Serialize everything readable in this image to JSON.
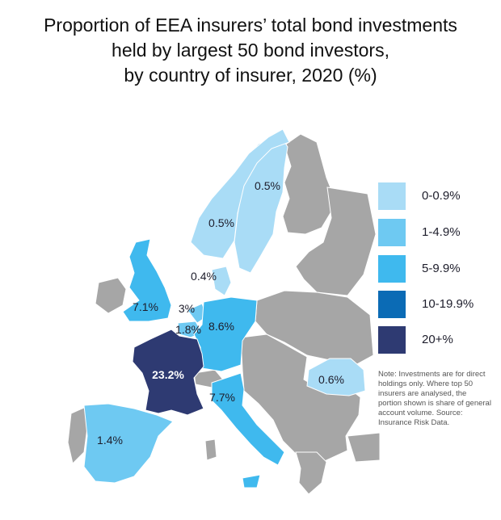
{
  "title": {
    "line1": "Proportion of EEA insurers’ total bond investments",
    "line2": "held by largest 50 bond investors,",
    "line3": "by country of insurer, 2020 (%)"
  },
  "colors": {
    "no_data": "#a6a6a6",
    "band_0": "#a9dcf6",
    "band_1": "#6ec9f2",
    "band_2": "#3fb9ee",
    "band_3": "#0b6bb5",
    "band_4": "#2e3a72",
    "background": "#ffffff"
  },
  "legend": [
    {
      "label": "0-0.9%",
      "color": "#a9dcf6"
    },
    {
      "label": "1-4.9%",
      "color": "#6ec9f2"
    },
    {
      "label": "5-9.9%",
      "color": "#3fb9ee"
    },
    {
      "label": "10-19.9%",
      "color": "#0b6bb5"
    },
    {
      "label": "20+%",
      "color": "#2e3a72"
    }
  ],
  "regions": [
    {
      "id": "sweden",
      "value": "0.5%",
      "band": "0-0.9%"
    },
    {
      "id": "norway",
      "value": "0.5%",
      "band": "0-0.9%"
    },
    {
      "id": "denmark",
      "value": "0.4%",
      "band": "0-0.9%"
    },
    {
      "id": "united-kingdom",
      "value": "7.1%",
      "band": "5-9.9%"
    },
    {
      "id": "netherlands",
      "value": "3%",
      "band": "1-4.9%"
    },
    {
      "id": "belgium",
      "value": "1.8%",
      "band": "1-4.9%"
    },
    {
      "id": "germany",
      "value": "8.6%",
      "band": "5-9.9%"
    },
    {
      "id": "france",
      "value": "23.2%",
      "band": "20+%"
    },
    {
      "id": "italy",
      "value": "7.7%",
      "band": "5-9.9%"
    },
    {
      "id": "spain",
      "value": "1.4%",
      "band": "1-4.9%"
    },
    {
      "id": "romania",
      "value": "0.6%",
      "band": "0-0.9%"
    }
  ],
  "note": "Note: Investments are for direct holdings only. Where top 50 insurers are analysed, the portion shown is share of general account volume. Source: Insurance Risk Data."
}
